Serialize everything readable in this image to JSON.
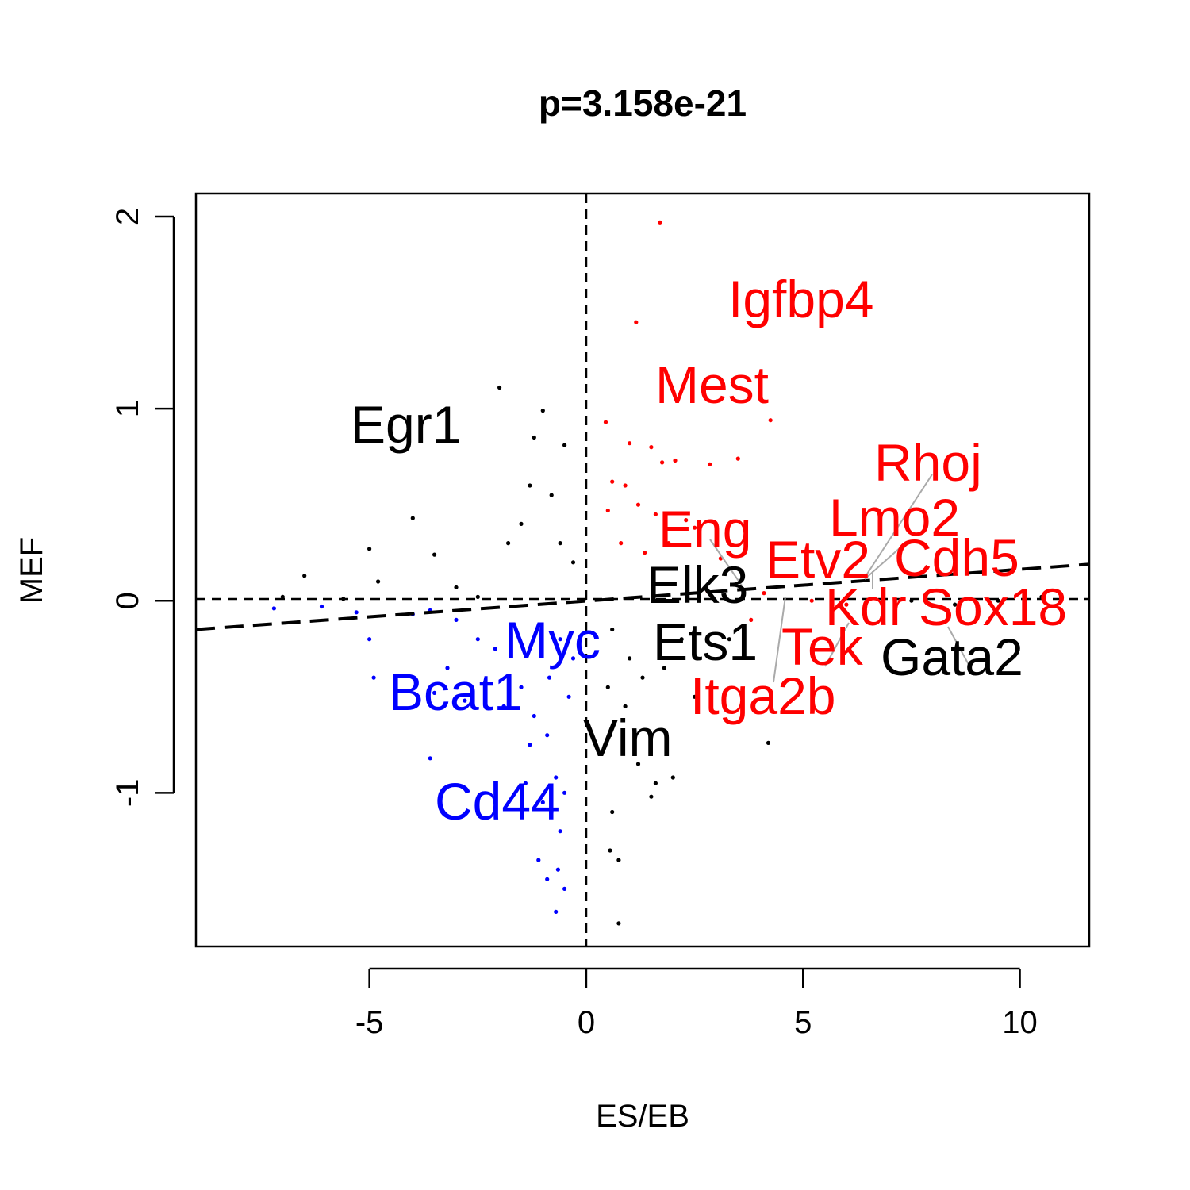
{
  "chart_data": {
    "type": "scatter",
    "title": "p=3.158e-21",
    "xlabel": "ES/EB",
    "ylabel": "MEF",
    "xlim": [
      -9.0,
      11.6
    ],
    "ylim": [
      -1.8,
      2.12
    ],
    "xticks": [
      -5,
      0,
      5,
      10
    ],
    "yticks": [
      -1,
      0,
      1,
      2
    ],
    "reference_lines": {
      "vertical_x": 0,
      "horizontal_y": 0,
      "style": "dashed"
    },
    "regression_line": {
      "x": [
        -9.0,
        11.6
      ],
      "y": [
        -0.15,
        0.19
      ],
      "style": "dashed"
    },
    "colors": {
      "up": "#ff0000",
      "down": "#0000ff",
      "other": "#000000",
      "leader": "#aaaaaa"
    },
    "series": [
      {
        "group": "up",
        "points": [
          [
            1.7,
            1.97
          ],
          [
            1.15,
            1.45
          ],
          [
            4.25,
            0.94
          ],
          [
            0.45,
            0.93
          ],
          [
            1.0,
            0.82
          ],
          [
            1.5,
            0.8
          ],
          [
            1.75,
            0.72
          ],
          [
            2.05,
            0.73
          ],
          [
            2.85,
            0.71
          ],
          [
            3.5,
            0.74
          ],
          [
            0.6,
            0.62
          ],
          [
            0.9,
            0.6
          ],
          [
            0.5,
            0.47
          ],
          [
            1.2,
            0.5
          ],
          [
            1.6,
            0.45
          ],
          [
            2.3,
            0.42
          ],
          [
            2.5,
            0.38
          ],
          [
            1.9,
            0.3
          ],
          [
            3.1,
            0.22
          ],
          [
            0.8,
            0.3
          ],
          [
            1.35,
            0.25
          ],
          [
            4.3,
            0.15
          ],
          [
            4.1,
            0.04
          ],
          [
            2.8,
            0.05
          ],
          [
            5.2,
            0.0
          ],
          [
            6.0,
            -0.02
          ],
          [
            3.8,
            -0.1
          ]
        ]
      },
      {
        "group": "down",
        "points": [
          [
            -7.2,
            -0.04
          ],
          [
            -6.1,
            -0.03
          ],
          [
            -5.3,
            -0.06
          ],
          [
            -4.0,
            -0.07
          ],
          [
            -3.6,
            -0.05
          ],
          [
            -3.0,
            -0.1
          ],
          [
            -2.5,
            -0.2
          ],
          [
            -2.1,
            -0.25
          ],
          [
            -3.2,
            -0.35
          ],
          [
            -4.9,
            -0.4
          ],
          [
            -5.0,
            -0.2
          ],
          [
            -3.5,
            -0.48
          ],
          [
            -2.8,
            -0.52
          ],
          [
            -1.9,
            -0.55
          ],
          [
            -1.2,
            -0.6
          ],
          [
            -1.5,
            -0.45
          ],
          [
            -0.9,
            -0.7
          ],
          [
            -3.6,
            -0.82
          ],
          [
            -1.3,
            -0.75
          ],
          [
            -0.7,
            -0.92
          ],
          [
            -0.5,
            -1.0
          ],
          [
            -1.4,
            -0.95
          ],
          [
            -1.0,
            -1.05
          ],
          [
            -0.8,
            -1.1
          ],
          [
            -0.6,
            -1.2
          ],
          [
            -0.65,
            -1.4
          ],
          [
            -0.9,
            -1.45
          ],
          [
            -1.1,
            -1.35
          ],
          [
            -0.5,
            -1.5
          ],
          [
            -0.7,
            -1.62
          ],
          [
            -0.3,
            -0.3
          ],
          [
            -0.4,
            -0.5
          ],
          [
            -0.6,
            -0.2
          ],
          [
            -0.85,
            -0.4
          ]
        ]
      },
      {
        "group": "other",
        "points": [
          [
            -2.0,
            1.11
          ],
          [
            -1.0,
            0.99
          ],
          [
            -1.2,
            0.85
          ],
          [
            -0.5,
            0.81
          ],
          [
            -1.3,
            0.6
          ],
          [
            -0.8,
            0.55
          ],
          [
            -4.0,
            0.43
          ],
          [
            -5.0,
            0.27
          ],
          [
            -3.5,
            0.24
          ],
          [
            -1.8,
            0.3
          ],
          [
            -1.5,
            0.4
          ],
          [
            -0.6,
            0.3
          ],
          [
            -6.5,
            0.13
          ],
          [
            -4.8,
            0.1
          ],
          [
            -3.0,
            0.07
          ],
          [
            -0.3,
            0.2
          ],
          [
            -7.0,
            0.02
          ],
          [
            -5.6,
            0.01
          ],
          [
            -2.5,
            0.02
          ],
          [
            0.6,
            -0.15
          ],
          [
            1.0,
            -0.3
          ],
          [
            0.5,
            -0.45
          ],
          [
            0.9,
            -0.55
          ],
          [
            1.3,
            -0.4
          ],
          [
            1.8,
            -0.35
          ],
          [
            2.2,
            -0.2
          ],
          [
            2.5,
            -0.5
          ],
          [
            0.55,
            -0.7
          ],
          [
            1.2,
            -0.85
          ],
          [
            1.6,
            -0.95
          ],
          [
            2.0,
            -0.92
          ],
          [
            1.5,
            -1.02
          ],
          [
            0.6,
            -1.1
          ],
          [
            0.55,
            -1.3
          ],
          [
            0.75,
            -1.35
          ],
          [
            0.75,
            -1.68
          ],
          [
            4.2,
            -0.74
          ],
          [
            3.3,
            -0.2
          ],
          [
            7.5,
            0.0
          ],
          [
            8.5,
            -0.02
          ],
          [
            9.5,
            0.0
          ],
          [
            10.5,
            0.02
          ]
        ]
      }
    ],
    "labels": [
      {
        "text": "Igfbp4",
        "color": "red"
      },
      {
        "text": "Mest",
        "color": "red"
      },
      {
        "text": "Egr1",
        "color": "black"
      },
      {
        "text": "Rhoj",
        "color": "red"
      },
      {
        "text": "Lmo2",
        "color": "red"
      },
      {
        "text": "Eng",
        "color": "red"
      },
      {
        "text": "Etv2",
        "color": "red"
      },
      {
        "text": "Cdh5",
        "color": "red"
      },
      {
        "text": "Elk3",
        "color": "black"
      },
      {
        "text": "Kdr",
        "color": "red"
      },
      {
        "text": "Sox18",
        "color": "red"
      },
      {
        "text": "Myc",
        "color": "blue"
      },
      {
        "text": "Ets1",
        "color": "black"
      },
      {
        "text": "Tek",
        "color": "red"
      },
      {
        "text": "Gata2",
        "color": "black"
      },
      {
        "text": "Bcat1",
        "color": "blue"
      },
      {
        "text": "Itga2b",
        "color": "red"
      },
      {
        "text": "Vim",
        "color": "black"
      },
      {
        "text": "Cd44",
        "color": "blue"
      }
    ]
  }
}
